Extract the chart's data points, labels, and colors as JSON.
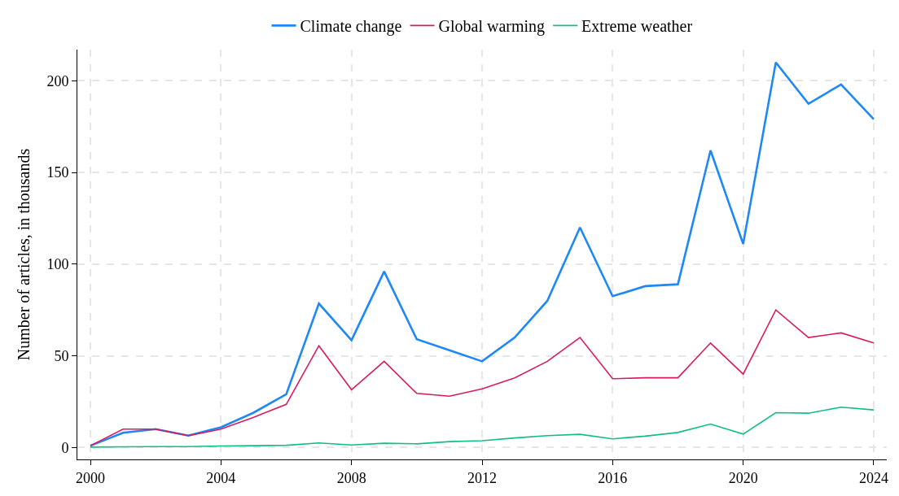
{
  "chart_data": {
    "type": "line",
    "ylabel": "Number of articles, in thousands",
    "x": [
      2000,
      2001,
      2002,
      2003,
      2004,
      2005,
      2006,
      2007,
      2008,
      2009,
      2010,
      2011,
      2012,
      2013,
      2014,
      2015,
      2016,
      2017,
      2018,
      2019,
      2020,
      2021,
      2022,
      2023,
      2024
    ],
    "series": [
      {
        "name": "Climate change",
        "color": "#1e88f5",
        "values": [
          1,
          8,
          10,
          6.5,
          11,
          19,
          29,
          78.5,
          58.5,
          96,
          59,
          53,
          47,
          60,
          80,
          120,
          82.5,
          88,
          89,
          162,
          111,
          210,
          187.5,
          198,
          179
        ]
      },
      {
        "name": "Global warming",
        "color": "#d81b60",
        "values": [
          1,
          10,
          10,
          6.5,
          10,
          16.5,
          23.5,
          55.5,
          31.5,
          47,
          29.5,
          28,
          32,
          38,
          47,
          60,
          37.5,
          38,
          38,
          57,
          40,
          75,
          60,
          62.5,
          57
        ]
      },
      {
        "name": "Extreme weather",
        "color": "#10c080",
        "values": [
          0.2,
          0.4,
          0.5,
          0.5,
          0.8,
          1,
          1.2,
          2.5,
          1.4,
          2.3,
          2,
          3.2,
          3.7,
          5.2,
          6.5,
          7.2,
          4.7,
          6.2,
          8.2,
          12.8,
          7.3,
          19,
          18.7,
          22,
          20.5
        ]
      }
    ],
    "xlim": [
      1999.6,
      2024.4
    ],
    "xticks": [
      2000,
      2004,
      2008,
      2012,
      2016,
      2020,
      2024
    ],
    "ylim": [
      -6.5,
      217
    ],
    "yticks": [
      0,
      50,
      100,
      150,
      200
    ],
    "grid": true,
    "legend": "top",
    "line_style": "solid",
    "marker": "none"
  }
}
